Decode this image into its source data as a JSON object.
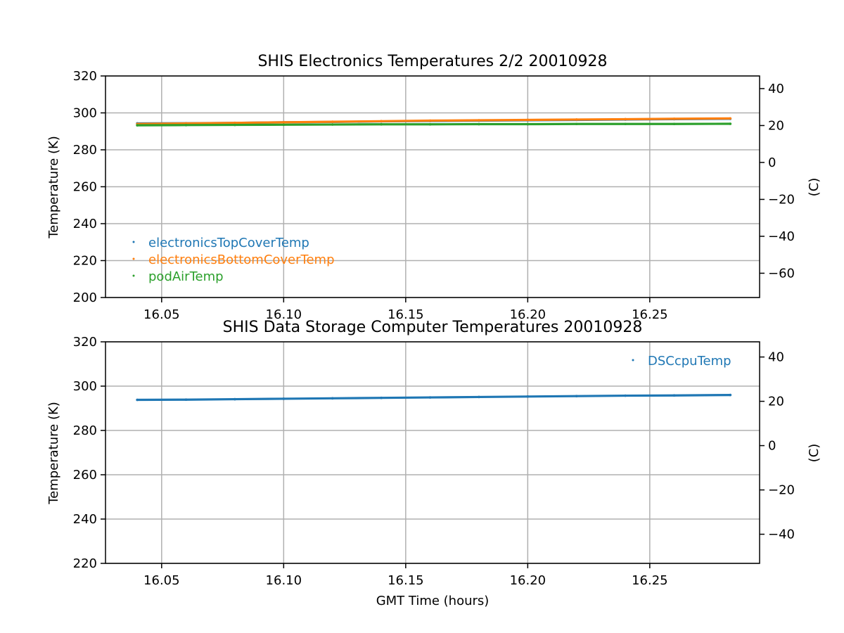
{
  "chart_data": [
    {
      "type": "scatter",
      "title": "SHIS Electronics Temperatures 2/2 20010928",
      "xlabel": "",
      "ylabel": "Temperature (K)",
      "y2label": "(C)",
      "xlim": [
        16.027,
        16.295
      ],
      "ylim": [
        200,
        320
      ],
      "y2lim": [
        -73.15,
        46.85
      ],
      "xticks": [
        "16.05",
        "16.10",
        "16.15",
        "16.20",
        "16.25"
      ],
      "yticks": [
        "200",
        "220",
        "240",
        "260",
        "280",
        "300",
        "320"
      ],
      "y2ticks": [
        "−60",
        "−40",
        "−20",
        "0",
        "20",
        "40"
      ],
      "grid": true,
      "legend_position": "lower-left",
      "series": [
        {
          "name": "electronicsTopCoverTemp",
          "color": "#1f77b4",
          "x": [
            16.04,
            16.06,
            16.08,
            16.1,
            16.12,
            16.14,
            16.16,
            16.18,
            16.2,
            16.22,
            16.24,
            16.26,
            16.283
          ],
          "y": [
            294.3,
            294.4,
            294.6,
            294.9,
            295.1,
            295.4,
            295.6,
            295.8,
            296.0,
            296.2,
            296.4,
            296.6,
            296.8
          ]
        },
        {
          "name": "electronicsBottomCoverTemp",
          "color": "#ff7f0e",
          "x": [
            16.04,
            16.06,
            16.08,
            16.1,
            16.12,
            16.14,
            16.16,
            16.18,
            16.2,
            16.22,
            16.24,
            16.26,
            16.283
          ],
          "y": [
            294.0,
            294.3,
            294.6,
            294.9,
            295.2,
            295.5,
            295.8,
            296.0,
            296.2,
            296.4,
            296.6,
            296.8,
            297.0
          ]
        },
        {
          "name": "podAirTemp",
          "color": "#2ca02c",
          "x": [
            16.04,
            16.06,
            16.08,
            16.1,
            16.12,
            16.14,
            16.16,
            16.18,
            16.2,
            16.22,
            16.24,
            16.26,
            16.283
          ],
          "y": [
            293.3,
            293.4,
            293.5,
            293.6,
            293.7,
            293.8,
            293.8,
            293.9,
            293.9,
            294.0,
            294.0,
            294.0,
            294.1
          ]
        }
      ]
    },
    {
      "type": "scatter",
      "title": "SHIS Data Storage Computer Temperatures 20010928",
      "xlabel": "GMT Time (hours)",
      "ylabel": "Temperature (K)",
      "y2label": "(C)",
      "xlim": [
        16.027,
        16.295
      ],
      "ylim": [
        220,
        320
      ],
      "y2lim": [
        -53.15,
        46.85
      ],
      "xticks": [
        "16.05",
        "16.10",
        "16.15",
        "16.20",
        "16.25"
      ],
      "yticks": [
        "220",
        "240",
        "260",
        "280",
        "300",
        "320"
      ],
      "y2ticks": [
        "−40",
        "−20",
        "0",
        "20",
        "40"
      ],
      "grid": true,
      "legend_position": "upper-right",
      "series": [
        {
          "name": "DSCcpuTemp",
          "color": "#1f77b4",
          "x": [
            16.04,
            16.06,
            16.08,
            16.1,
            16.12,
            16.14,
            16.16,
            16.18,
            16.2,
            16.22,
            16.24,
            16.26,
            16.283
          ],
          "y": [
            293.8,
            293.9,
            294.1,
            294.3,
            294.5,
            294.7,
            294.9,
            295.1,
            295.3,
            295.5,
            295.7,
            295.8,
            296.0
          ]
        }
      ]
    }
  ]
}
